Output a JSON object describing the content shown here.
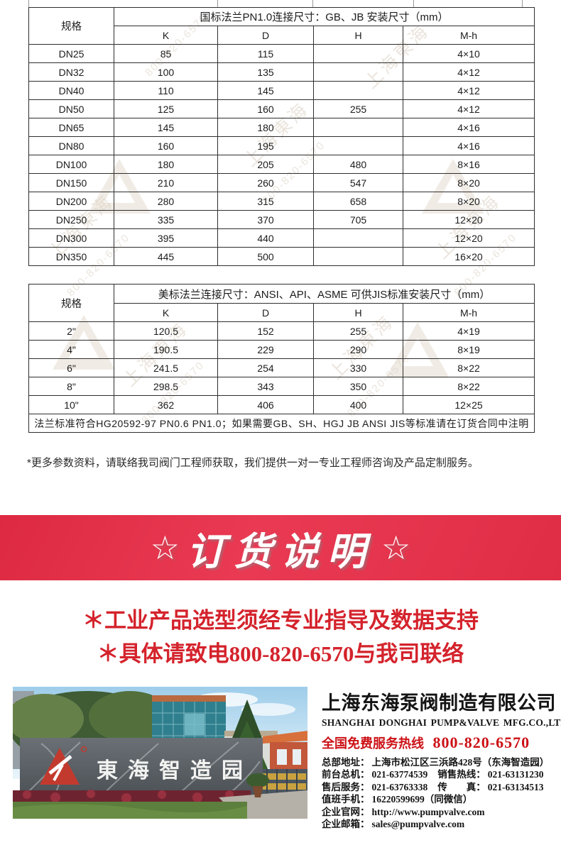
{
  "tables": {
    "gb": {
      "spec": "规格",
      "title": "国标法兰PN1.0连接尺寸：GB、JB 安装尺寸（mm）",
      "columns": [
        "K",
        "D",
        "H",
        "M-h"
      ],
      "rows": [
        [
          "DN25",
          "85",
          "115",
          "",
          "4×10"
        ],
        [
          "DN32",
          "100",
          "135",
          "",
          "4×12"
        ],
        [
          "DN40",
          "110",
          "145",
          "",
          "4×12"
        ],
        [
          "DN50",
          "125",
          "160",
          "255",
          "4×12"
        ],
        [
          "DN65",
          "145",
          "180",
          "",
          "4×16"
        ],
        [
          "DN80",
          "160",
          "195",
          "",
          "4×16"
        ],
        [
          "DN100",
          "180",
          "205",
          "480",
          "8×16"
        ],
        [
          "DN150",
          "210",
          "260",
          "547",
          "8×20"
        ],
        [
          "DN200",
          "280",
          "315",
          "658",
          "8×20"
        ],
        [
          "DN250",
          "335",
          "370",
          "705",
          "12×20"
        ],
        [
          "DN300",
          "395",
          "440",
          "",
          "12×20"
        ],
        [
          "DN350",
          "445",
          "500",
          "",
          "16×20"
        ]
      ]
    },
    "ansi": {
      "spec": "规格",
      "title": "美标法兰连接尺寸：ANSI、API、ASME 可供JIS标准安装尺寸（mm）",
      "columns": [
        "K",
        "D",
        "H",
        "M-h"
      ],
      "rows": [
        [
          "2\"",
          "120.5",
          "152",
          "255",
          "4×19"
        ],
        [
          "4\"",
          "190.5",
          "229",
          "290",
          "8×19"
        ],
        [
          "6\"",
          "241.5",
          "254",
          "330",
          "8×22"
        ],
        [
          "8\"",
          "298.5",
          "343",
          "350",
          "8×22"
        ],
        [
          "10\"",
          "362",
          "406",
          "400",
          "12×25"
        ]
      ],
      "footnote": "法兰标准符合HG20592-97 PN0.6 PN1.0；如果需要GB、SH、HGJ JB ANSI JIS等标准请在订货合同中注明"
    }
  },
  "note": "*更多参数资料，请联络我司阀门工程师获取，我们提供一对一专业工程师咨询及产品定制服务。",
  "banner": {
    "star": "☆",
    "title": "订货说明",
    "bg": "#e23349",
    "text_color": "#ffffff"
  },
  "notice": {
    "line1": "＊工业产品选型须经专业指导及数据支持",
    "line2": "＊具体请致电800-820-6570与我司联络",
    "color": "#d4232c"
  },
  "photo": {
    "sign": "東海智造园"
  },
  "company": {
    "name_cn": "上海东海泵阀制造有限公司",
    "name_en": "SHANGHAI DONGHAI PUMP&VALVE MFG.CO.,LTD.",
    "hotline_label": "全国免费服务热线",
    "hotline_number": "800-820-6570",
    "hotline_color": "#cc1116",
    "details": [
      {
        "l1": "总部地址：",
        "v1": "上海市松江区三浜路428号（东海智造园）",
        "l2": "",
        "v2": ""
      },
      {
        "l1": "前台总机：",
        "v1": "021-63774539",
        "l2": "销售热线：",
        "v2": "021-63131230"
      },
      {
        "l1": "售后服务：",
        "v1": "021-63763338",
        "l2": "传　　真：",
        "v2": "021-63134513"
      },
      {
        "l1": "值班手机：",
        "v1": "16220599699（同微信）",
        "l2": "",
        "v2": ""
      },
      {
        "l1": "企业官网：",
        "v1": "http://www.pumpvalve.com",
        "l2": "",
        "v2": ""
      },
      {
        "l1": "企业邮箱：",
        "v1": "sales@pumpvalve.com",
        "l2": "",
        "v2": ""
      }
    ]
  },
  "watermark": {
    "text1": "上海東海",
    "text2": "800-820-6570",
    "color": "#d9cfc0"
  }
}
